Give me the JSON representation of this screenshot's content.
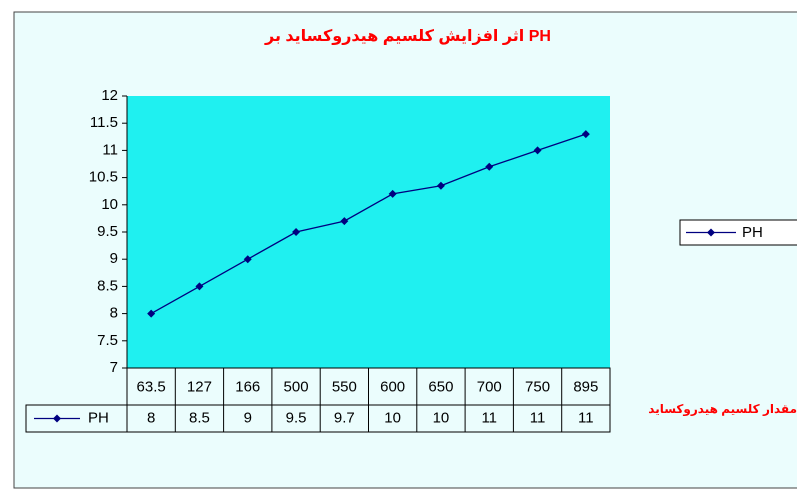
{
  "chart_data": {
    "type": "line",
    "title": "اثر افزايش كلسيم هيدروكسايد بر PH",
    "x_label": "مقدار كلسيم هيدروكسايد",
    "categories": [
      "63.5",
      "127",
      "166",
      "500",
      "550",
      "600",
      "650",
      "700",
      "750",
      "895"
    ],
    "series": [
      {
        "name": "PH",
        "color": "#000080",
        "values": [
          8,
          8.5,
          9,
          9.5,
          9.7,
          10.2,
          10.35,
          10.7,
          11,
          11.3
        ],
        "value_labels": [
          "8",
          "8.5",
          "9",
          "9.5",
          "9.7",
          "10",
          "10",
          "11",
          "11",
          "11"
        ]
      }
    ],
    "ylim": [
      7,
      12
    ],
    "yticks": [
      7,
      7.5,
      8,
      8.5,
      9,
      9.5,
      10,
      10.5,
      11,
      11.5,
      12
    ],
    "legend": "right",
    "data_table": true
  }
}
